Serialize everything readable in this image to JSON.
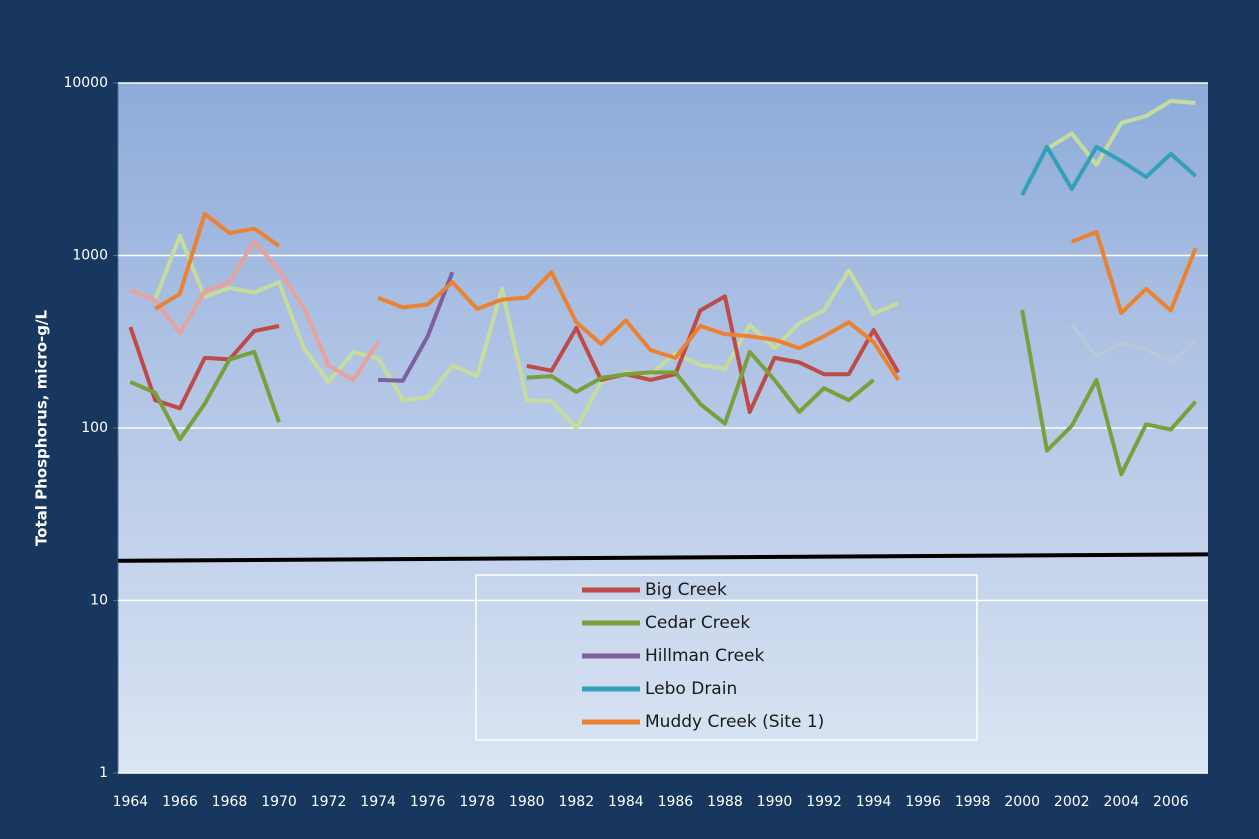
{
  "chart_data": {
    "type": "line",
    "y_label": "Total Phosphorus, micro-g/L",
    "y_log_scale": true,
    "ylim": [
      1,
      10000
    ],
    "yticks": [
      1,
      10,
      100,
      1000,
      10000
    ],
    "grid": true,
    "legend_position": "bottom-center",
    "categories": [
      "1964",
      null,
      "1966",
      null,
      "1968",
      null,
      "1970",
      null,
      "1972",
      null,
      "1974",
      null,
      "1976",
      null,
      "1978",
      null,
      "1980",
      null,
      "1982",
      null,
      "1984",
      null,
      "1986",
      null,
      "1988",
      null,
      "1990",
      null,
      "1992",
      null,
      "1994",
      null,
      "1996",
      null,
      "1998",
      null,
      "2000",
      null,
      "2002",
      null,
      "2004",
      null,
      "2006",
      null
    ],
    "series": [
      {
        "name": "Big Creek",
        "color": "#be4b48",
        "values": [
          385,
          145,
          130,
          255,
          250,
          365,
          390,
          null,
          null,
          null,
          null,
          null,
          null,
          null,
          null,
          null,
          229,
          215,
          380,
          190,
          205,
          190,
          205,
          480,
          580,
          124,
          255,
          240,
          205,
          205,
          370,
          210,
          null,
          null,
          null,
          null,
          null,
          null,
          null,
          null,
          null,
          null,
          null,
          null
        ]
      },
      {
        "name": "Cedar Creek",
        "color": "#79a03d",
        "values": [
          185,
          160,
          86,
          138,
          250,
          276,
          108,
          null,
          null,
          null,
          null,
          null,
          null,
          null,
          null,
          null,
          196,
          200,
          162,
          195,
          205,
          210,
          210,
          138,
          106,
          276,
          190,
          124,
          170,
          145,
          190,
          null,
          null,
          null,
          null,
          null,
          482,
          74,
          103,
          190,
          54,
          105,
          98,
          142
        ]
      },
      {
        "name": "Hillman Creek",
        "color": "#7d60a0",
        "values": [
          null,
          null,
          null,
          null,
          null,
          null,
          null,
          null,
          null,
          null,
          190,
          188,
          340,
          800,
          null,
          null,
          null,
          null,
          null,
          null,
          null,
          null,
          null,
          null,
          null,
          null,
          null,
          null,
          null,
          null,
          null,
          null,
          null,
          null,
          null,
          null,
          null,
          null,
          null,
          null,
          null,
          null,
          null,
          null
        ]
      },
      {
        "name": "Lebo Drain",
        "color": "#33a0b8",
        "values": [
          null,
          null,
          null,
          null,
          null,
          null,
          null,
          null,
          null,
          null,
          null,
          null,
          null,
          null,
          null,
          null,
          null,
          null,
          null,
          null,
          null,
          null,
          null,
          null,
          null,
          null,
          null,
          null,
          null,
          null,
          null,
          null,
          null,
          null,
          null,
          null,
          2240,
          4260,
          2430,
          4260,
          3530,
          2850,
          3880,
          2890
        ]
      },
      {
        "name": "Muddy Creek (Site 1)",
        "color": "#ec8131",
        "values": [
          null,
          490,
          600,
          1740,
          1350,
          1430,
          1135,
          null,
          null,
          null,
          568,
          500,
          520,
          700,
          490,
          555,
          570,
          800,
          410,
          307,
          420,
          283,
          255,
          390,
          350,
          340,
          325,
          290,
          340,
          410,
          315,
          190,
          null,
          null,
          null,
          null,
          null,
          null,
          1200,
          1370,
          465,
          640,
          480,
          1100
        ]
      },
      {
        "color": "#c6dc9c",
        "values": [
          null,
          555,
          1300,
          575,
          650,
          610,
          700,
          290,
          185,
          275,
          255,
          145,
          150,
          230,
          200,
          640,
          145,
          143,
          100,
          184,
          210,
          205,
          270,
          232,
          220,
          395,
          290,
          405,
          480,
          820,
          460,
          530,
          null,
          null,
          null,
          null,
          null,
          4150,
          5100,
          3350,
          5860,
          6440,
          7860,
          7660
        ]
      },
      {
        "color": "#e8a29c",
        "values": [
          630,
          550,
          355,
          620,
          700,
          1210,
          820,
          500,
          230,
          190,
          315,
          null,
          null,
          null,
          null,
          null,
          null,
          null,
          null,
          null,
          null,
          null,
          null,
          null,
          null,
          null,
          null,
          null,
          null,
          null,
          null,
          null,
          null,
          null,
          null,
          null,
          null,
          null,
          null,
          null,
          null,
          null,
          null,
          null
        ]
      },
      {
        "color": "#b8c8dc",
        "values": [
          null,
          null,
          null,
          null,
          null,
          null,
          null,
          null,
          null,
          null,
          null,
          null,
          null,
          null,
          null,
          null,
          null,
          null,
          null,
          null,
          null,
          null,
          null,
          null,
          null,
          null,
          null,
          null,
          null,
          null,
          null,
          null,
          null,
          null,
          null,
          null,
          null,
          null,
          395,
          260,
          310,
          285,
          240,
          320
        ]
      }
    ],
    "trend_line": {
      "color": "#000000",
      "values": [
        17,
        18.5
      ]
    }
  }
}
